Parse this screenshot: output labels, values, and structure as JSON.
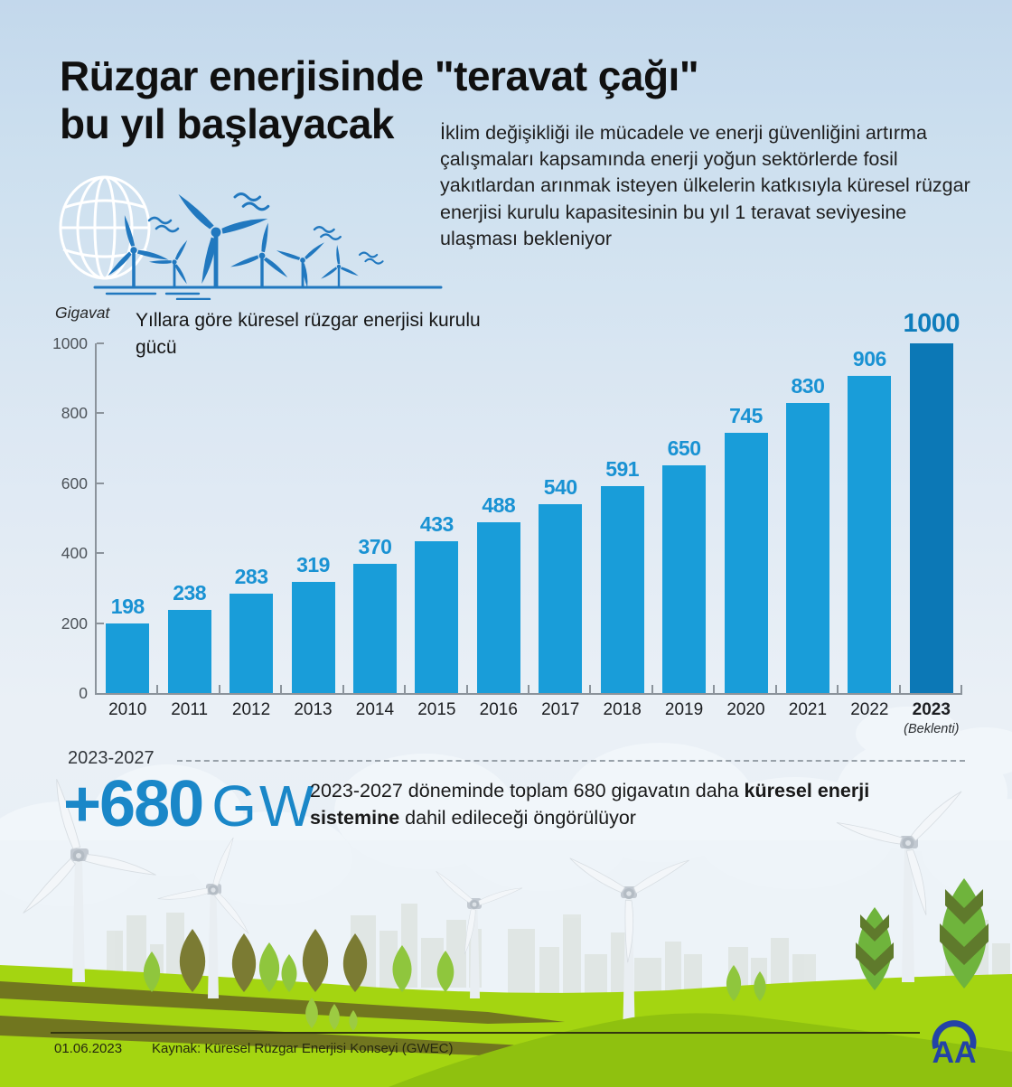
{
  "title": {
    "line1": "Rüzgar enerjisinde \"teravat çağı\"",
    "line2": "bu yıl başlayacak"
  },
  "intro": "İklim değişikliği ile mücadele ve enerji güvenliğini artırma çalışmaları kapsamında enerji yoğun sektörlerde fosil yakıtlardan arınmak isteyen ülkelerin katkısıyla küresel rüzgar enerjisi kurulu kapasitesinin bu yıl 1 teravat seviyesine ulaşması bekleniyor",
  "chart_data": {
    "type": "bar",
    "title": "Yıllara göre küresel rüzgar enerjisi kurulu gücü",
    "unit_label": "Gigavat",
    "categories": [
      "2010",
      "2011",
      "2012",
      "2013",
      "2014",
      "2015",
      "2016",
      "2017",
      "2018",
      "2019",
      "2020",
      "2021",
      "2022",
      "2023"
    ],
    "values": [
      198,
      238,
      283,
      319,
      370,
      433,
      488,
      540,
      591,
      650,
      745,
      830,
      906,
      1000
    ],
    "highlight_index": 13,
    "highlight_note": "(Beklenti)",
    "ylim": [
      0,
      1000
    ],
    "yticks": [
      0,
      200,
      400,
      600,
      800,
      1000
    ],
    "grid": false,
    "legend": "none",
    "bar_color": "#199dd9",
    "highlight_color": "#0c78b6",
    "value_label_color": "#1992d3",
    "highlight_value_label_color": "#0f7dbc"
  },
  "projection": {
    "period_label": "2023-2027",
    "big_value": "+680",
    "big_unit": "GW",
    "desc_segments": [
      {
        "text": "2023-2027 döneminde toplam 680 gigavatın daha ",
        "bold": false
      },
      {
        "text": "küresel enerji sistemine",
        "bold": true
      },
      {
        "text": " dahil edileceği öngörülüyor",
        "bold": false
      }
    ]
  },
  "footer": {
    "date": "01.06.2023",
    "source": "Kaynak: Küresel Rüzgar Enerjisi Konseyi (GWEC)",
    "logo_text": "AA"
  }
}
